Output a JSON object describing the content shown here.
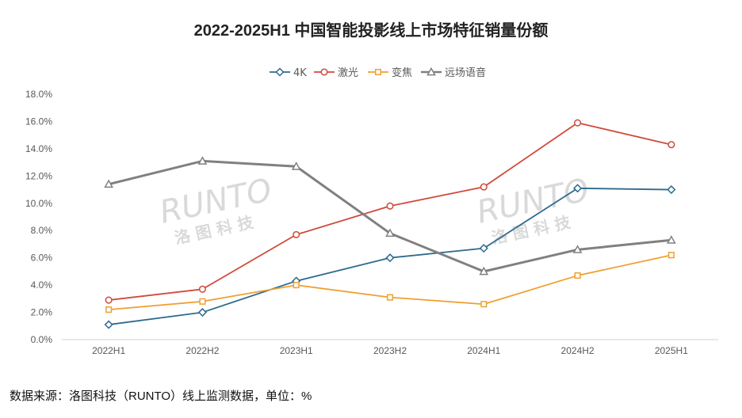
{
  "chart_data": {
    "type": "line",
    "title": "2022-2025H1 中国智能投影线上市场特征销量份额",
    "categories": [
      "2022H1",
      "2022H2",
      "2023H1",
      "2023H2",
      "2024H1",
      "2024H2",
      "2025H1"
    ],
    "ylim": [
      0,
      18
    ],
    "yticks": [
      0,
      2,
      4,
      6,
      8,
      10,
      12,
      14,
      16,
      18
    ],
    "ytick_labels": [
      "0.0%",
      "2.0%",
      "4.0%",
      "6.0%",
      "8.0%",
      "10.0%",
      "12.0%",
      "14.0%",
      "16.0%",
      "18.0%"
    ],
    "grid": false,
    "legend": "top-center",
    "series": [
      {
        "name": "4K",
        "values": [
          1.1,
          2.0,
          4.3,
          6.0,
          6.7,
          11.1,
          11.0
        ],
        "color": "#2e6a8e",
        "marker": "diamond"
      },
      {
        "name": "激光",
        "values": [
          2.9,
          3.7,
          7.7,
          9.8,
          11.2,
          15.9,
          14.3
        ],
        "color": "#d04a3c",
        "marker": "circle"
      },
      {
        "name": "变焦",
        "values": [
          2.2,
          2.8,
          4.0,
          3.1,
          2.6,
          4.7,
          6.2
        ],
        "color": "#f0a030",
        "marker": "square"
      },
      {
        "name": "远场语音",
        "values": [
          11.4,
          13.1,
          12.7,
          7.8,
          5.0,
          6.6,
          7.3
        ],
        "color": "#808080",
        "marker": "triangle"
      }
    ]
  },
  "watermark": {
    "main": "RUNTO",
    "sub": "洛 图 科 技"
  },
  "footer": {
    "source": "数据来源：洛图科技（RUNTO）线上监测数据，单位：%"
  }
}
